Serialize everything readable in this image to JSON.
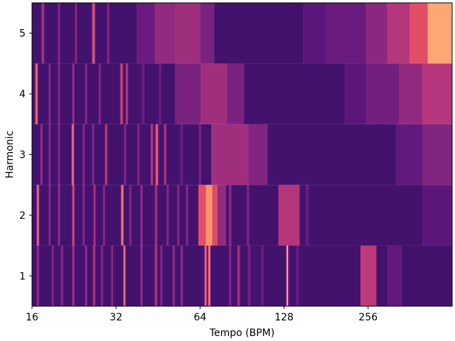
{
  "chart_data": {
    "type": "heatmap",
    "title": "",
    "xlabel": "Tempo (BPM)",
    "ylabel": "Harmonic",
    "x_scale": "log2",
    "xlim": [
      16,
      512
    ],
    "x_ticks": [
      16,
      32,
      64,
      128,
      256
    ],
    "x_tick_labels": [
      "16",
      "32",
      "64",
      "128",
      "256"
    ],
    "y_categories": [
      1,
      2,
      3,
      4,
      5
    ],
    "y_tick_labels": [
      "1",
      "2",
      "3",
      "4",
      "5"
    ],
    "colormap": "magma",
    "background_value": 0.22,
    "rows": [
      {
        "harmonic": 1,
        "peaks": [
          {
            "bpm": 16.3,
            "value": 0.05,
            "width": 0.7
          },
          {
            "bpm": 17.2,
            "value": 0.05,
            "width": 0.7
          },
          {
            "bpm": 18.3,
            "value": 0.05,
            "width": 0.7
          },
          {
            "bpm": 19.5,
            "value": 0.05,
            "width": 0.7
          },
          {
            "bpm": 21.0,
            "value": 0.05,
            "width": 0.7
          },
          {
            "bpm": 24.3,
            "value": 0.05,
            "width": 0.7
          },
          {
            "bpm": 27.0,
            "value": 0.05,
            "width": 0.7
          },
          {
            "bpm": 30.0,
            "value": 0.05,
            "width": 0.7
          },
          {
            "bpm": 33.5,
            "value": 0.05,
            "width": 0.7
          },
          {
            "bpm": 37.5,
            "value": 0.05,
            "width": 0.7
          },
          {
            "bpm": 49.5,
            "value": 0.05,
            "width": 0.7
          },
          {
            "bpm": 58.5,
            "value": 0.05,
            "width": 0.7
          },
          {
            "bpm": 71.0,
            "value": 0.05,
            "width": 0.7
          },
          {
            "bpm": 125.0,
            "value": 0.05,
            "width": 0.7
          },
          {
            "bpm": 16.8,
            "value": 0.5,
            "width": 0.6
          },
          {
            "bpm": 19.0,
            "value": 0.45,
            "width": 0.6
          },
          {
            "bpm": 20.5,
            "value": 0.45,
            "width": 0.6
          },
          {
            "bpm": 22.5,
            "value": 0.55,
            "width": 0.6
          },
          {
            "bpm": 25.0,
            "value": 0.5,
            "width": 0.6
          },
          {
            "bpm": 26.7,
            "value": 0.6,
            "width": 0.6
          },
          {
            "bpm": 28.5,
            "value": 0.45,
            "width": 0.6
          },
          {
            "bpm": 31.0,
            "value": 0.45,
            "width": 0.6
          },
          {
            "bpm": 34.3,
            "value": 0.8,
            "width": 0.6
          },
          {
            "bpm": 39.5,
            "value": 0.5,
            "width": 0.6
          },
          {
            "bpm": 44.5,
            "value": 0.6,
            "width": 0.6
          },
          {
            "bpm": 46.5,
            "value": 0.45,
            "width": 0.6
          },
          {
            "bpm": 51.5,
            "value": 0.5,
            "width": 0.6
          },
          {
            "bpm": 55.0,
            "value": 0.5,
            "width": 0.6
          },
          {
            "bpm": 67.0,
            "value": 0.78,
            "width": 0.65
          },
          {
            "bpm": 69.0,
            "value": 0.88,
            "width": 0.65
          },
          {
            "bpm": 82.0,
            "value": 0.45,
            "width": 0.6
          },
          {
            "bpm": 88.0,
            "value": 0.55,
            "width": 0.7
          },
          {
            "bpm": 96.0,
            "value": 0.4,
            "width": 0.7
          },
          {
            "bpm": 107.0,
            "value": 0.35,
            "width": 0.7
          },
          {
            "bpm": 131.5,
            "value": 0.9,
            "width": 0.6
          },
          {
            "bpm": 143.0,
            "value": 0.35,
            "width": 0.7
          }
        ],
        "segments": [
          {
            "from": 240,
            "to": 275,
            "value": 0.52
          },
          {
            "from": 300,
            "to": 340,
            "value": 0.3
          }
        ]
      },
      {
        "harmonic": 2,
        "peaks": [
          {
            "bpm": 16.8,
            "value": 0.78,
            "width": 0.65
          },
          {
            "bpm": 18.5,
            "value": 0.45,
            "width": 0.6
          },
          {
            "bpm": 20.0,
            "value": 0.5,
            "width": 0.6
          },
          {
            "bpm": 22.5,
            "value": 0.68,
            "width": 0.65
          },
          {
            "bpm": 24.5,
            "value": 0.45,
            "width": 0.6
          },
          {
            "bpm": 26.8,
            "value": 0.55,
            "width": 0.6
          },
          {
            "bpm": 29.0,
            "value": 0.45,
            "width": 0.6
          },
          {
            "bpm": 33.7,
            "value": 0.82,
            "width": 0.7
          },
          {
            "bpm": 36.0,
            "value": 0.45,
            "width": 0.6
          },
          {
            "bpm": 39.5,
            "value": 0.5,
            "width": 0.6
          },
          {
            "bpm": 44.5,
            "value": 0.55,
            "width": 0.6
          },
          {
            "bpm": 49.0,
            "value": 0.45,
            "width": 0.6
          },
          {
            "bpm": 53.5,
            "value": 0.45,
            "width": 0.6
          },
          {
            "bpm": 57.5,
            "value": 0.45,
            "width": 0.6
          },
          {
            "bpm": 82.0,
            "value": 0.45,
            "width": 0.8
          },
          {
            "bpm": 95.0,
            "value": 0.4,
            "width": 0.8
          },
          {
            "bpm": 155.0,
            "value": 0.35,
            "width": 0.8
          }
        ],
        "segments": [
          {
            "from": 63,
            "to": 67,
            "value": 0.62
          },
          {
            "from": 67,
            "to": 71,
            "value": 0.78
          },
          {
            "from": 71,
            "to": 74,
            "value": 0.6
          },
          {
            "from": 74,
            "to": 79,
            "value": 0.42
          },
          {
            "from": 122,
            "to": 146,
            "value": 0.5
          },
          {
            "from": 400,
            "to": 512,
            "value": 0.28
          }
        ]
      },
      {
        "harmonic": 3,
        "peaks": [
          {
            "bpm": 17.3,
            "value": 0.5,
            "width": 0.6
          },
          {
            "bpm": 18.5,
            "value": 0.45,
            "width": 0.6
          },
          {
            "bpm": 20.0,
            "value": 0.45,
            "width": 0.6
          },
          {
            "bpm": 22.4,
            "value": 0.82,
            "width": 0.65
          },
          {
            "bpm": 24.5,
            "value": 0.45,
            "width": 0.6
          },
          {
            "bpm": 26.5,
            "value": 0.45,
            "width": 0.6
          },
          {
            "bpm": 29.5,
            "value": 0.6,
            "width": 0.65
          },
          {
            "bpm": 34.5,
            "value": 0.45,
            "width": 0.6
          },
          {
            "bpm": 38.5,
            "value": 0.45,
            "width": 0.6
          },
          {
            "bpm": 44.8,
            "value": 0.75,
            "width": 0.8
          },
          {
            "bpm": 43.0,
            "value": 0.58,
            "width": 0.7
          },
          {
            "bpm": 48.0,
            "value": 0.55,
            "width": 0.7
          },
          {
            "bpm": 55.0,
            "value": 0.35,
            "width": 0.8
          },
          {
            "bpm": 64.0,
            "value": 0.38,
            "width": 0.8
          }
        ],
        "segments": [
          {
            "from": 70,
            "to": 95,
            "value": 0.45
          },
          {
            "from": 95,
            "to": 112,
            "value": 0.38
          },
          {
            "from": 320,
            "to": 400,
            "value": 0.3
          },
          {
            "from": 400,
            "to": 512,
            "value": 0.38
          }
        ]
      },
      {
        "harmonic": 4,
        "peaks": [
          {
            "bpm": 16.6,
            "value": 0.82,
            "width": 0.65
          },
          {
            "bpm": 18.5,
            "value": 0.45,
            "width": 0.6
          },
          {
            "bpm": 20.0,
            "value": 0.45,
            "width": 0.6
          },
          {
            "bpm": 22.5,
            "value": 0.5,
            "width": 0.6
          },
          {
            "bpm": 25.0,
            "value": 0.45,
            "width": 0.6
          },
          {
            "bpm": 28.0,
            "value": 0.45,
            "width": 0.6
          },
          {
            "bpm": 33.5,
            "value": 0.68,
            "width": 0.7
          },
          {
            "bpm": 35.0,
            "value": 0.55,
            "width": 0.7
          },
          {
            "bpm": 40.0,
            "value": 0.35,
            "width": 0.8
          },
          {
            "bpm": 46.0,
            "value": 0.35,
            "width": 0.8
          }
        ],
        "segments": [
          {
            "from": 52,
            "to": 64,
            "value": 0.36
          },
          {
            "from": 64,
            "to": 80,
            "value": 0.45
          },
          {
            "from": 80,
            "to": 92,
            "value": 0.36
          },
          {
            "from": 210,
            "to": 250,
            "value": 0.28
          },
          {
            "from": 250,
            "to": 330,
            "value": 0.34
          },
          {
            "from": 330,
            "to": 400,
            "value": 0.42
          },
          {
            "from": 400,
            "to": 512,
            "value": 0.5
          }
        ]
      },
      {
        "harmonic": 5,
        "peaks": [
          {
            "bpm": 17.5,
            "value": 0.55,
            "width": 0.7
          },
          {
            "bpm": 20.0,
            "value": 0.45,
            "width": 0.6
          },
          {
            "bpm": 23.0,
            "value": 0.45,
            "width": 0.6
          },
          {
            "bpm": 26.6,
            "value": 0.72,
            "width": 0.8
          },
          {
            "bpm": 30.0,
            "value": 0.45,
            "width": 0.6
          }
        ],
        "segments": [
          {
            "from": 38,
            "to": 44,
            "value": 0.32
          },
          {
            "from": 44,
            "to": 52,
            "value": 0.42
          },
          {
            "from": 52,
            "to": 64,
            "value": 0.45
          },
          {
            "from": 64,
            "to": 72,
            "value": 0.36
          },
          {
            "from": 150,
            "to": 180,
            "value": 0.28
          },
          {
            "from": 180,
            "to": 250,
            "value": 0.32
          },
          {
            "from": 250,
            "to": 300,
            "value": 0.4
          },
          {
            "from": 300,
            "to": 360,
            "value": 0.5
          },
          {
            "from": 360,
            "to": 420,
            "value": 0.62
          },
          {
            "from": 420,
            "to": 512,
            "value": 0.82
          }
        ]
      }
    ]
  }
}
